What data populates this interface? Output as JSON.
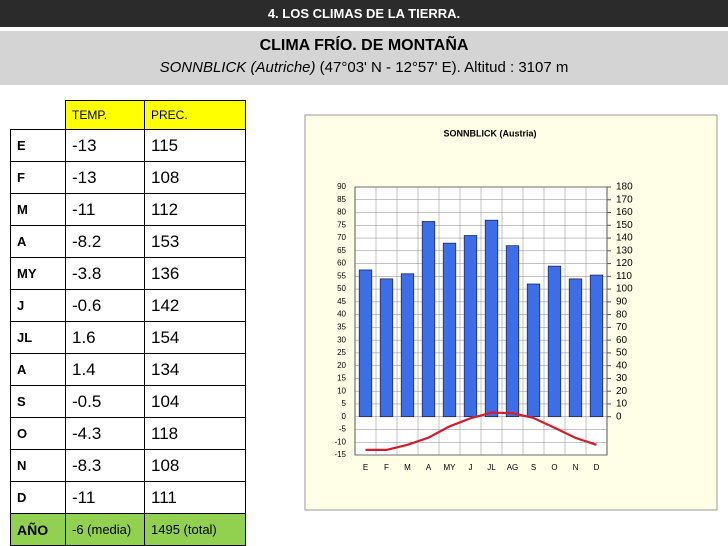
{
  "header": {
    "title": "4. LOS CLIMAS DE LA TIERRA.",
    "heading": "CLIMA FRÍO. DE MONTAÑA",
    "place": "SONNBLICK (Autriche)",
    "details": " (47°03' N - 12°57' E). Altitud : 3107 m"
  },
  "table": {
    "columns": [
      "TEMP.",
      "PREC."
    ],
    "rows": [
      [
        "E",
        -13,
        115
      ],
      [
        "F",
        -13,
        108
      ],
      [
        "M",
        -11,
        112
      ],
      [
        "A",
        -8.2,
        153
      ],
      [
        "MY",
        -3.8,
        136
      ],
      [
        "J",
        -0.6,
        142
      ],
      [
        "JL",
        1.6,
        154
      ],
      [
        "A",
        1.4,
        134
      ],
      [
        "S",
        -0.5,
        104
      ],
      [
        "O",
        -4.3,
        118
      ],
      [
        "N",
        -8.3,
        108
      ],
      [
        "D",
        -11,
        111
      ]
    ],
    "total": [
      "AÑO",
      "-6 (media)",
      "1495 (total)"
    ]
  },
  "chart_data": {
    "type": "combo",
    "title": "SONNBLICK (Austria)",
    "categories": [
      "E",
      "F",
      "M",
      "A",
      "MY",
      "J",
      "JL",
      "AG",
      "S",
      "O",
      "N",
      "D"
    ],
    "series": [
      {
        "type": "bar",
        "axis": "y2",
        "color": "#3d6ee8",
        "values": [
          115,
          108,
          112,
          153,
          136,
          142,
          154,
          134,
          104,
          118,
          108,
          111
        ]
      },
      {
        "type": "line",
        "color": "#d41c2c",
        "values": [
          -13,
          -13,
          -11,
          -8.2,
          -3.8,
          -0.6,
          1.6,
          1.4,
          -0.5,
          -4.3,
          -8.3,
          -11
        ]
      }
    ],
    "ylim": [
      -15,
      90
    ],
    "yticks": [
      -15,
      -10,
      -5,
      0,
      5,
      10,
      15,
      20,
      25,
      30,
      35,
      40,
      45,
      50,
      55,
      60,
      65,
      70,
      75,
      80,
      85,
      90
    ],
    "y2lim": [
      -30,
      180
    ],
    "y2ticks": [
      0,
      10,
      20,
      30,
      40,
      50,
      60,
      70,
      80,
      90,
      100,
      110,
      120,
      130,
      140,
      150,
      160,
      170,
      180
    ],
    "grid": true
  }
}
